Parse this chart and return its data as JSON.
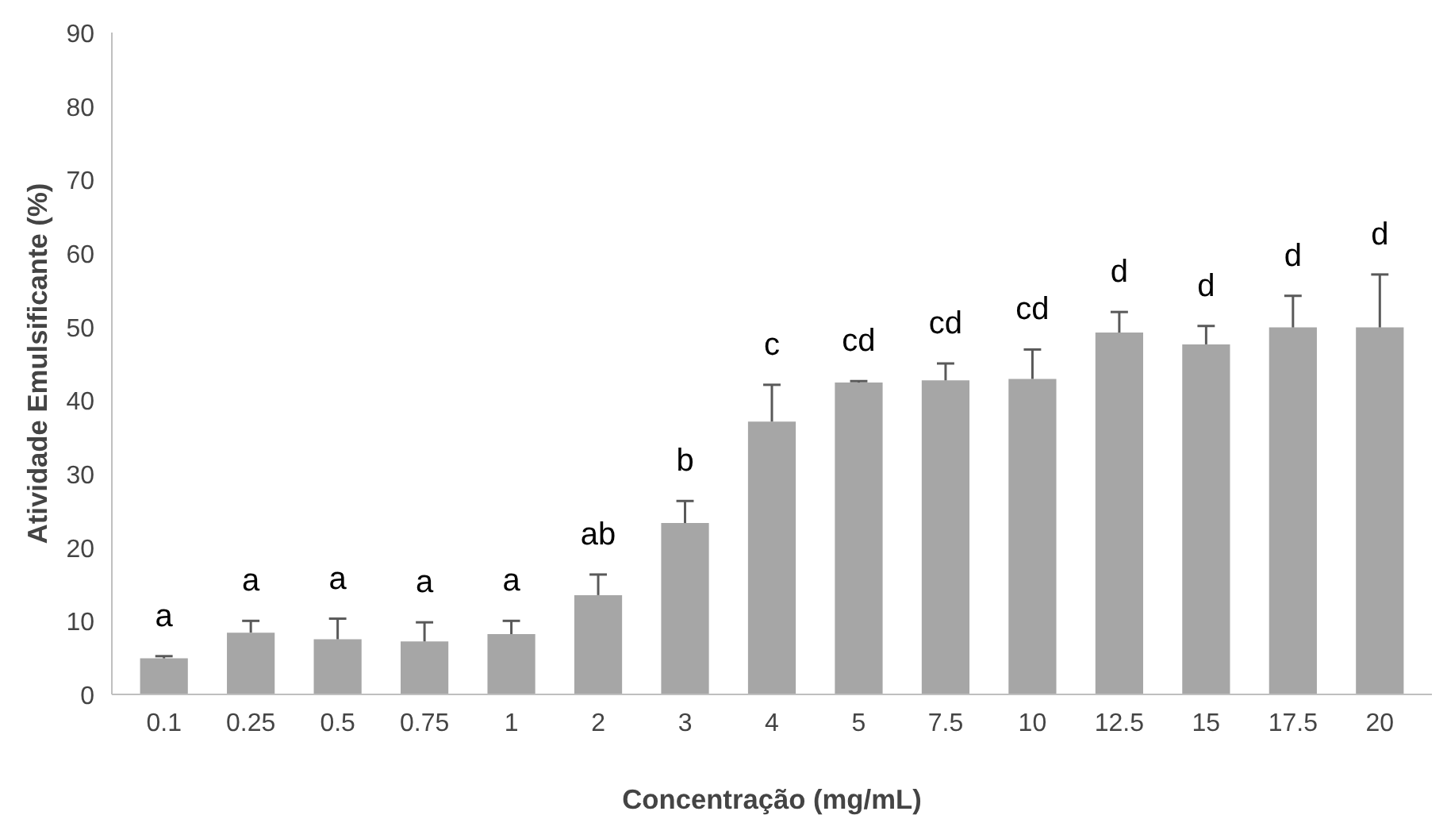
{
  "chart_data": {
    "type": "bar",
    "xlabel": "Concentração (mg/mL)",
    "ylabel": "Atividade Emulsificante (%)",
    "categories": [
      "0.1",
      "0.25",
      "0.5",
      "0.75",
      "1",
      "2",
      "3",
      "4",
      "5",
      "7.5",
      "10",
      "12.5",
      "15",
      "17.5",
      "20"
    ],
    "values": [
      4.9,
      8.4,
      7.5,
      7.2,
      8.2,
      13.5,
      23.3,
      37.1,
      42.4,
      42.7,
      42.9,
      49.2,
      47.6,
      49.9,
      49.9
    ],
    "errors": [
      [
        4.9,
        5.2
      ],
      [
        8.4,
        10
      ],
      [
        7.5,
        10.3
      ],
      [
        7.2,
        9.8
      ],
      [
        8.2,
        10
      ],
      [
        13.5,
        16.3
      ],
      [
        23.3,
        26.3
      ],
      [
        37.1,
        42.1
      ],
      [
        42.4,
        42.6
      ],
      [
        42.7,
        45
      ],
      [
        42.9,
        46.9
      ],
      [
        49.2,
        52
      ],
      [
        47.6,
        50.1
      ],
      [
        49.9,
        54.2
      ],
      [
        49.9,
        57.1
      ]
    ],
    "color": "#a6a6a6",
    "ylim": [
      0,
      90
    ],
    "yticks": [
      0,
      10,
      20,
      30,
      40,
      50,
      60,
      70,
      80,
      90
    ],
    "grid": false,
    "annotations": [
      "a",
      "a",
      "a",
      "a",
      "a",
      "ab",
      "b",
      "c",
      "cd",
      "cd",
      "cd",
      "d",
      "d",
      "d",
      "d"
    ]
  }
}
